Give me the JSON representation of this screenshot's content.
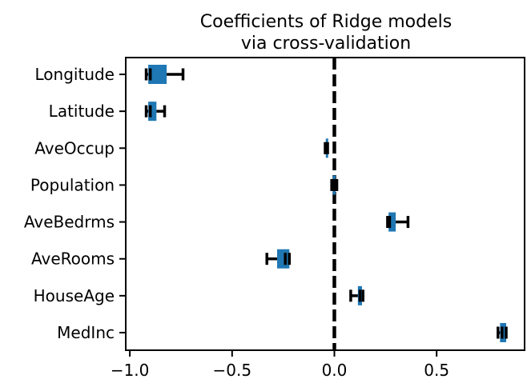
{
  "chart_data": {
    "type": "boxplot",
    "orientation": "horizontal",
    "title": [
      "Coefficients of Ridge models",
      "via cross-validation"
    ],
    "xlabel": "",
    "ylabel": "",
    "xlim": [
      -1.02,
      0.93
    ],
    "xticks": [
      -1.0,
      -0.5,
      0.0,
      0.5
    ],
    "xtick_labels": [
      "−1.0",
      "−0.5",
      "0.0",
      "0.5"
    ],
    "reference_line": {
      "x": 0.0,
      "style": "dashed",
      "color": "#000000"
    },
    "box_color": "#1f77b4",
    "whisker_color": "#000000",
    "grid": false,
    "features": [
      {
        "name": "Longitude",
        "whislo": -0.92,
        "q1": -0.91,
        "median": -0.9,
        "q3": -0.82,
        "whishi": -0.74
      },
      {
        "name": "Latitude",
        "whislo": -0.92,
        "q1": -0.91,
        "median": -0.9,
        "q3": -0.87,
        "whishi": -0.83
      },
      {
        "name": "AveOccup",
        "whislo": -0.045,
        "q1": -0.042,
        "median": -0.04,
        "q3": -0.036,
        "whishi": -0.033
      },
      {
        "name": "Population",
        "whislo": -0.013,
        "q1": -0.008,
        "median": 0.0,
        "q3": 0.006,
        "whishi": 0.012
      },
      {
        "name": "AveBedrms",
        "whislo": 0.26,
        "q1": 0.265,
        "median": 0.27,
        "q3": 0.3,
        "whishi": 0.36
      },
      {
        "name": "AveRooms",
        "whislo": -0.33,
        "q1": -0.28,
        "median": -0.24,
        "q3": -0.22,
        "whishi": -0.22
      },
      {
        "name": "HouseAge",
        "whislo": 0.08,
        "q1": 0.115,
        "median": 0.125,
        "q3": 0.135,
        "whishi": 0.14
      },
      {
        "name": "MedInc",
        "whislo": 0.8,
        "q1": 0.81,
        "median": 0.82,
        "q3": 0.84,
        "whishi": 0.84
      }
    ]
  }
}
